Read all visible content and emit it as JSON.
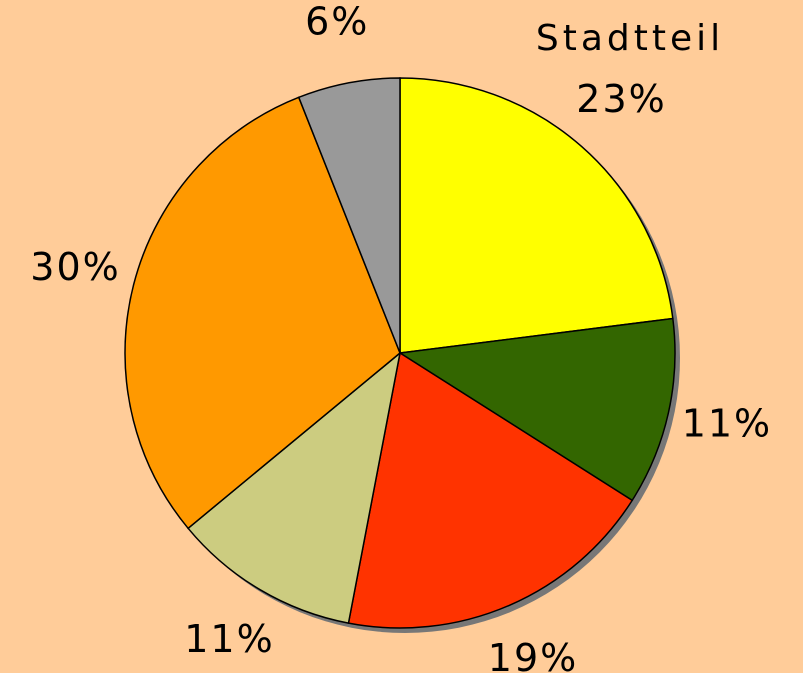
{
  "chart_data": {
    "type": "pie",
    "title": "Stadtteil",
    "values": [
      23,
      11,
      19,
      11,
      30,
      6
    ],
    "value_labels": [
      "23%",
      "11%",
      "19%",
      "11%",
      "30%",
      "6%"
    ],
    "colors": [
      "#ffff00",
      "#336600",
      "#ff3300",
      "#cccc80",
      "#ff9900",
      "#999999"
    ]
  }
}
